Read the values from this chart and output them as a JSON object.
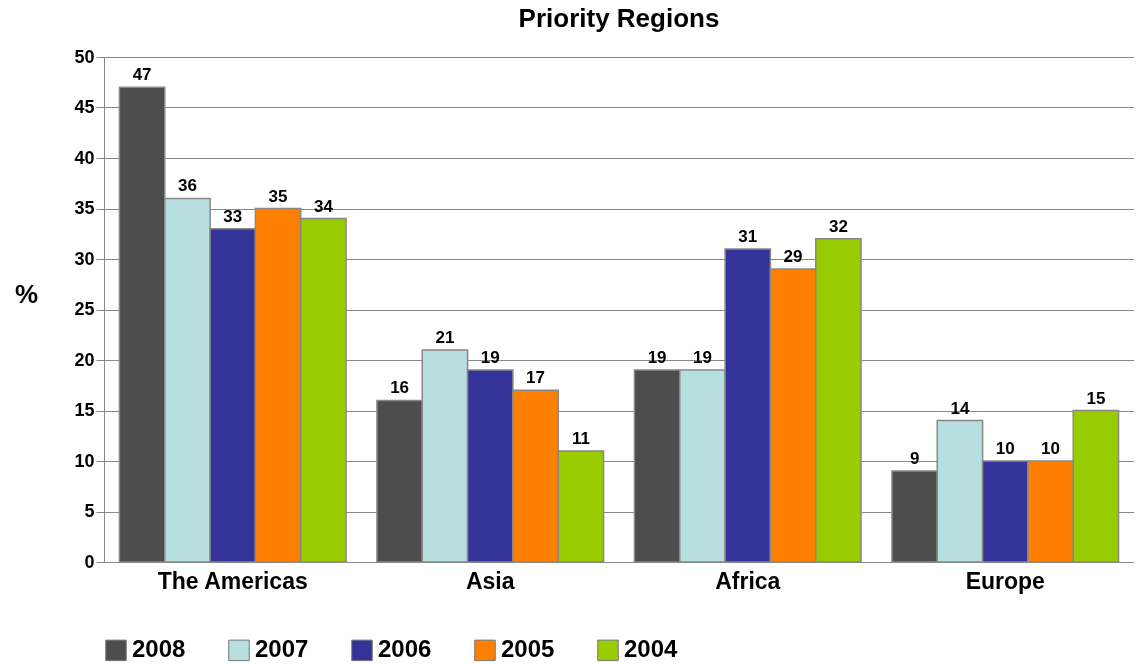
{
  "chart_data": {
    "type": "bar",
    "title": "Priority Regions",
    "ylabel": "%",
    "categories": [
      "The Americas",
      "Asia",
      "Africa",
      "Europe"
    ],
    "series": [
      {
        "name": "2008",
        "color": "#4d4d4d",
        "values": [
          47,
          16,
          19,
          9
        ]
      },
      {
        "name": "2007",
        "color": "#b8dfe0",
        "values": [
          36,
          21,
          19,
          14
        ]
      },
      {
        "name": "2006",
        "color": "#333399",
        "values": [
          33,
          19,
          31,
          10
        ]
      },
      {
        "name": "2005",
        "color": "#ff8000",
        "values": [
          35,
          17,
          29,
          10
        ]
      },
      {
        "name": "2004",
        "color": "#99cc00",
        "values": [
          34,
          11,
          32,
          15
        ]
      }
    ],
    "ylim": [
      0,
      50
    ],
    "yticks": [
      0,
      5,
      10,
      15,
      20,
      25,
      30,
      35,
      40,
      45,
      50
    ],
    "grid": "y",
    "legend": "bottom",
    "data_labels": true
  }
}
